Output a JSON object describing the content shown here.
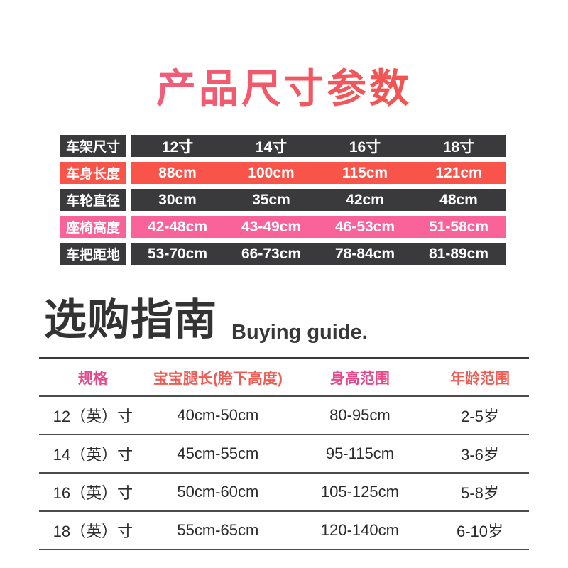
{
  "title": {
    "text": "产品尺寸参数",
    "gradient_start": "#f2608c",
    "gradient_end": "#f3503e"
  },
  "spec_table": {
    "colors": {
      "dark": "#3a3a3c",
      "red": "#f9544a",
      "pink": "#f9639a",
      "text": "#ffffff"
    },
    "rows": [
      {
        "label": "车架尺寸",
        "style": "dark",
        "values": [
          "12寸",
          "14寸",
          "16寸",
          "18寸"
        ]
      },
      {
        "label": "车身长度",
        "style": "red",
        "values": [
          "88cm",
          "100cm",
          "115cm",
          "121cm"
        ]
      },
      {
        "label": "车轮直径",
        "style": "dark",
        "values": [
          "30cm",
          "35cm",
          "42cm",
          "48cm"
        ]
      },
      {
        "label": "座椅高度",
        "style": "pink",
        "values": [
          "42-48cm",
          "43-49cm",
          "46-53cm",
          "51-58cm"
        ]
      },
      {
        "label": "车把距地",
        "style": "dark",
        "values": [
          "53-70cm",
          "66-73cm",
          "78-84cm",
          "81-89cm"
        ]
      }
    ]
  },
  "guide": {
    "heading": "选购指南",
    "subheading": "Buying guide.",
    "table": {
      "headers": [
        {
          "label": "规格",
          "color": "#e8478a"
        },
        {
          "label": "宝宝腿长(胯下高度)",
          "color": "#ef5b52"
        },
        {
          "label": "身高范围",
          "color": "#e8478a"
        },
        {
          "label": "年龄范围",
          "color": "#ef5b52"
        }
      ],
      "rows": [
        [
          "12（英）寸",
          "40cm-50cm",
          "80-95cm",
          "2-5岁"
        ],
        [
          "14（英）寸",
          "45cm-55cm",
          "95-115cm",
          "3-6岁"
        ],
        [
          "16（英）寸",
          "50cm-60cm",
          "105-125cm",
          "5-8岁"
        ],
        [
          "18（英）寸",
          "55cm-65cm",
          "120-140cm",
          "6-10岁"
        ]
      ]
    }
  }
}
